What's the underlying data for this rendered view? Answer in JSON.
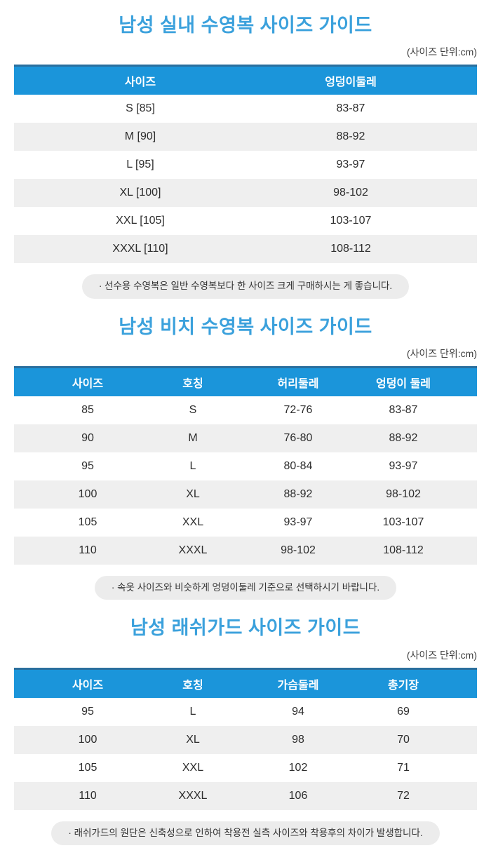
{
  "unit_label": "(사이즈 단위:cm)",
  "colors": {
    "title_blue": "#3ba1dc",
    "header_bg": "#1b95da",
    "header_top_border": "#2a6f9e",
    "alt_row_gray": "#efefef",
    "note_bg": "#ececec"
  },
  "sections": [
    {
      "title": "남성 실내 수영복 사이즈 가이드",
      "columns": [
        "사이즈",
        "엉덩이둘레"
      ],
      "rows": [
        [
          "S [85]",
          "83-87"
        ],
        [
          "M [90]",
          "88-92"
        ],
        [
          "L [95]",
          "93-97"
        ],
        [
          "XL [100]",
          "98-102"
        ],
        [
          "XXL [105]",
          "103-107"
        ],
        [
          "XXXL [110]",
          "108-112"
        ]
      ],
      "note": "· 선수용 수영복은 일반 수영복보다 한 사이즈 크게 구매하시는 게 좋습니다."
    },
    {
      "title": "남성 비치 수영복 사이즈 가이드",
      "columns": [
        "사이즈",
        "호칭",
        "허리둘레",
        "엉덩이 둘레"
      ],
      "rows": [
        [
          "85",
          "S",
          "72-76",
          "83-87"
        ],
        [
          "90",
          "M",
          "76-80",
          "88-92"
        ],
        [
          "95",
          "L",
          "80-84",
          "93-97"
        ],
        [
          "100",
          "XL",
          "88-92",
          "98-102"
        ],
        [
          "105",
          "XXL",
          "93-97",
          "103-107"
        ],
        [
          "110",
          "XXXL",
          "98-102",
          "108-112"
        ]
      ],
      "note": "· 속옷 사이즈와 비슷하게 엉덩이둘레 기준으로 선택하시기 바랍니다."
    },
    {
      "title": "남성 래쉬가드 사이즈 가이드",
      "columns": [
        "사이즈",
        "호칭",
        "가슴둘레",
        "총기장"
      ],
      "rows": [
        [
          "95",
          "L",
          "94",
          "69"
        ],
        [
          "100",
          "XL",
          "98",
          "70"
        ],
        [
          "105",
          "XXL",
          "102",
          "71"
        ],
        [
          "110",
          "XXXL",
          "106",
          "72"
        ]
      ],
      "note": "· 래쉬가드의 원단은 신축성으로 인하여 착용전 실측 사이즈와 착용후의 차이가 발생합니다."
    }
  ]
}
